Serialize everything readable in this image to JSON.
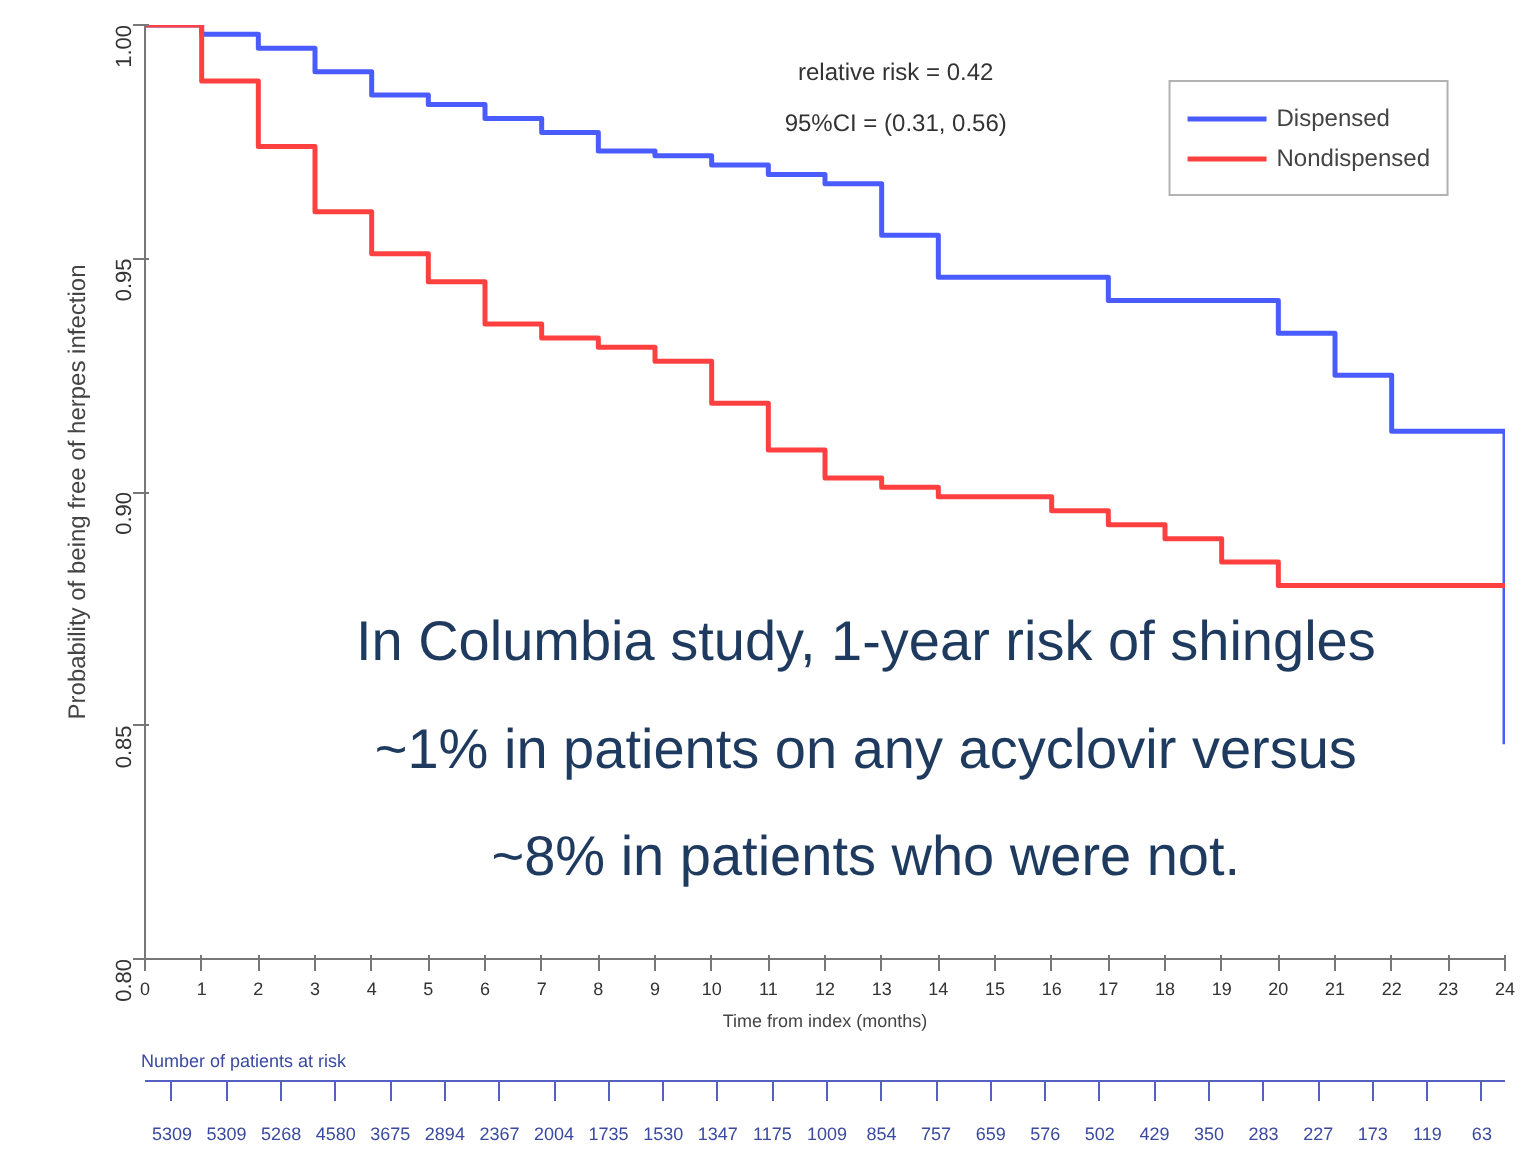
{
  "chart_data": [
    {
      "type": "step",
      "xlabel": "Time from index (months)",
      "ylabel": "Probability of being free of herpes infection",
      "x": [
        0,
        1,
        2,
        3,
        4,
        5,
        6,
        7,
        8,
        9,
        10,
        11,
        12,
        13,
        14,
        15,
        16,
        17,
        18,
        19,
        20,
        21,
        22,
        23,
        24
      ],
      "series": [
        {
          "name": "Dispensed",
          "color": "#4a5cff",
          "values": [
            1.0,
            0.998,
            0.995,
            0.99,
            0.985,
            0.983,
            0.98,
            0.977,
            0.973,
            0.972,
            0.97,
            0.968,
            0.966,
            0.955,
            0.946,
            0.946,
            0.946,
            0.941,
            0.941,
            0.941,
            0.934,
            0.925,
            0.913,
            0.913,
            0.846
          ]
        },
        {
          "name": "Nondispensed",
          "color": "#ff4040",
          "values": [
            1.0,
            0.988,
            0.974,
            0.96,
            0.951,
            0.945,
            0.936,
            0.933,
            0.931,
            0.928,
            0.919,
            0.909,
            0.903,
            0.901,
            0.899,
            0.899,
            0.896,
            0.893,
            0.89,
            0.885,
            0.88,
            0.88,
            0.88,
            0.88,
            0.88
          ]
        }
      ],
      "xlim": [
        0,
        24
      ],
      "xticks": [
        0,
        1,
        2,
        3,
        4,
        5,
        6,
        7,
        8,
        9,
        10,
        11,
        12,
        13,
        14,
        15,
        16,
        17,
        18,
        19,
        20,
        21,
        22,
        23,
        24
      ],
      "ylim": [
        0.8,
        1.0
      ],
      "yticks": [
        {
          "value": 0.8,
          "label": "0.80"
        },
        {
          "value": 0.85,
          "label": "0.85"
        },
        {
          "value": 0.9,
          "label": "0.90"
        },
        {
          "value": 0.95,
          "label": "0.95"
        },
        {
          "value": 1.0,
          "label": "1.00"
        }
      ],
      "grid": false,
      "legend": "top right",
      "annotations": [
        "relative risk = 0.42\n95%CI = (0.31, 0.56)",
        "In Columbia study, 1-year risk of shingles\n~1% in patients on any acyclovir versus\n~8% in patients who were not."
      ]
    },
    {
      "type": "other",
      "title": "Number of patients at risk",
      "values": [
        5309,
        5309,
        5268,
        4580,
        3675,
        2894,
        2367,
        2004,
        1735,
        1530,
        1347,
        1175,
        1009,
        854,
        757,
        659,
        576,
        502,
        429,
        350,
        283,
        227,
        173,
        119,
        63
      ],
      "data_labels": true
    }
  ]
}
